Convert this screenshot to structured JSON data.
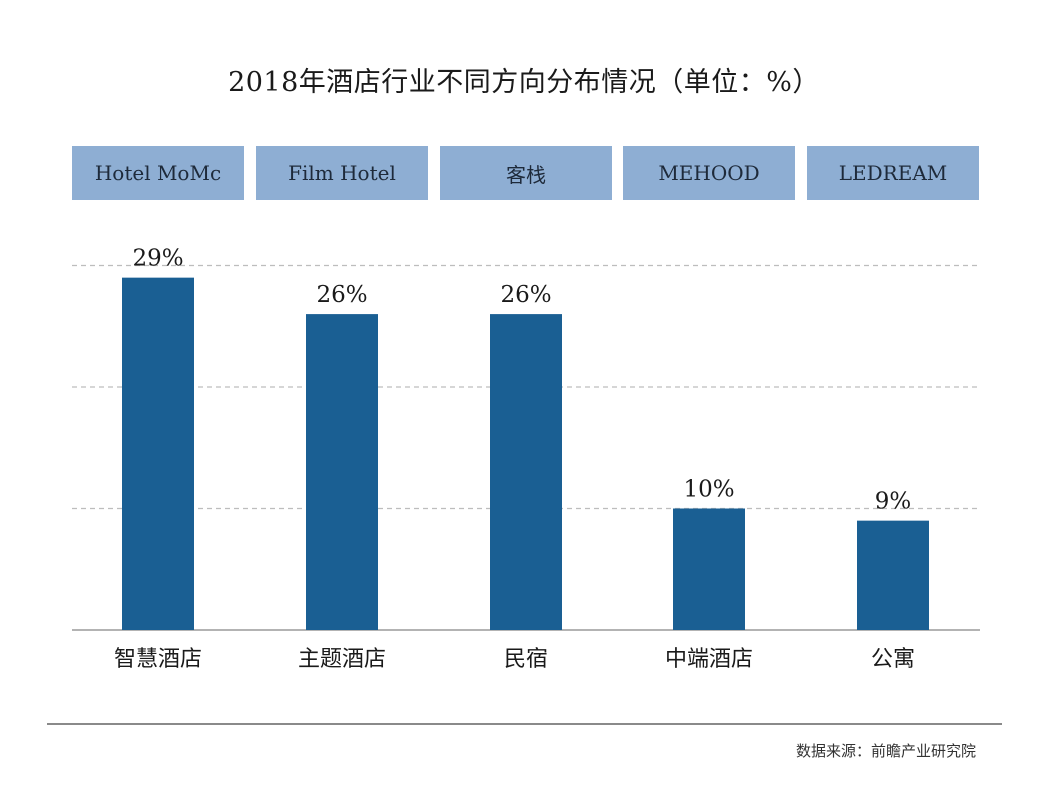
{
  "chart_data": {
    "type": "bar",
    "title": "2018年酒店行业不同方向分布情况（单位：%）",
    "categories": [
      "智慧酒店",
      "主题酒店",
      "民宿",
      "中端酒店",
      "公寓"
    ],
    "values": [
      29,
      26,
      26,
      10,
      9
    ],
    "value_labels": [
      "29%",
      "26%",
      "26%",
      "10%",
      "9%"
    ],
    "brands": [
      "Hotel MoMc",
      "Film Hotel",
      "客栈",
      "MEHOOD",
      "LEDREAM"
    ],
    "ylim": [
      0,
      30
    ],
    "grid": true,
    "bar_color": "#1a5f93",
    "header_color": "#8eaed3",
    "xlabel": "",
    "ylabel": ""
  },
  "source": "数据来源：前瞻产业研究院"
}
